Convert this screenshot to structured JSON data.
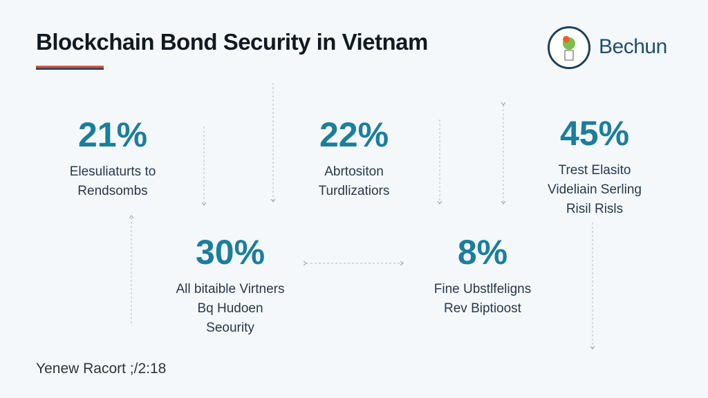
{
  "header": {
    "title": "Blockchain Bond Security in Vietnam",
    "brand": "Bechun"
  },
  "stats": [
    {
      "value": "21%",
      "lines": [
        "Elesuliaturts to",
        "Rendsombs"
      ]
    },
    {
      "value": "22%",
      "lines": [
        "Abrtositon",
        "Turdlizatiors"
      ]
    },
    {
      "value": "45%",
      "lines": [
        "Trest Elasito",
        "Videliain Serling",
        "Risil Risls"
      ]
    },
    {
      "value": "30%",
      "lines": [
        "All bitaible Virtners",
        "Bq Hudoen",
        "Seourity"
      ]
    },
    {
      "value": "8%",
      "lines": [
        "Fine Ubstlfeligns",
        "Rev Biptioost"
      ]
    }
  ],
  "footer": "Yenew Racort ;/2:18",
  "colors": {
    "accent": "#1b7e9b",
    "title": "#111a22",
    "bar_red": "#d9573e",
    "bar_navy": "#2a4a6a"
  }
}
